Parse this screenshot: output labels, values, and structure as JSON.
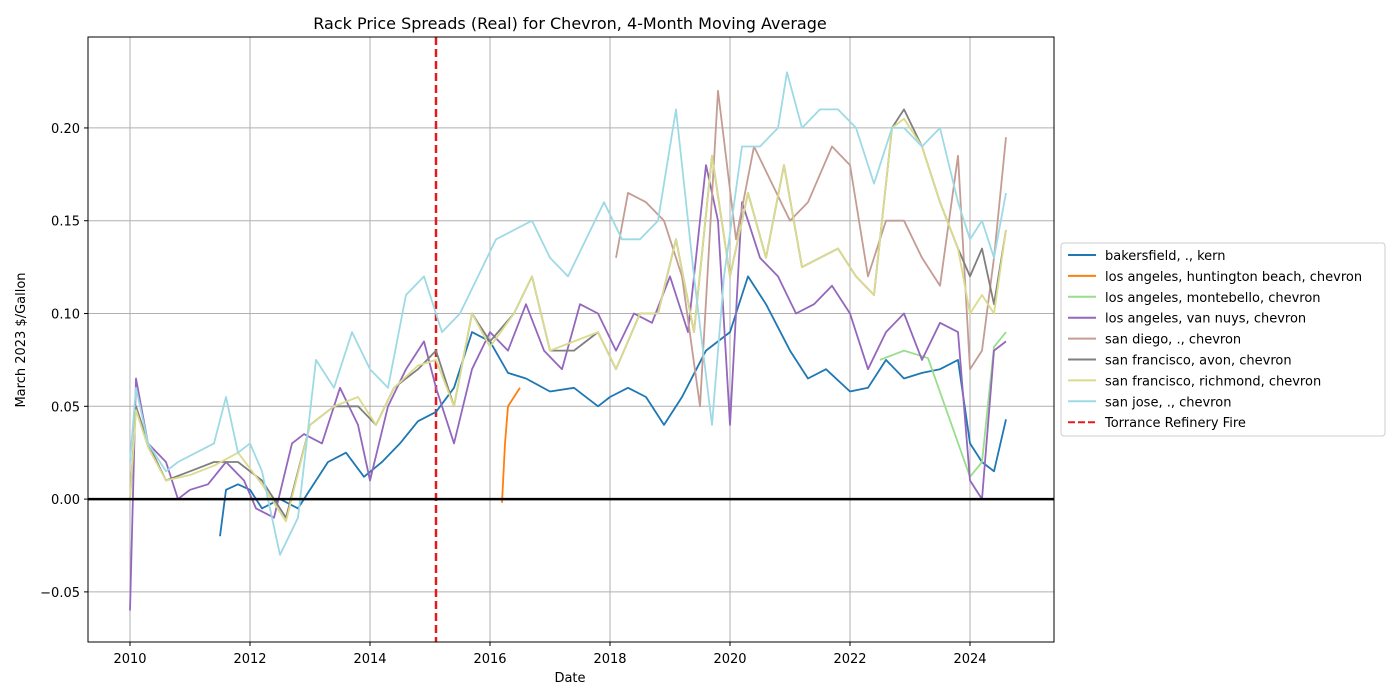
{
  "chart_data": {
    "type": "line",
    "title": "Rack Price Spreads (Real) for Chevron, 4-Month Moving Average",
    "xlabel": "Date",
    "ylabel": "March 2023 $/Gallon",
    "xlim": [
      2009.3,
      2025.4
    ],
    "ylim": [
      -0.077,
      0.249
    ],
    "x_ticks": [
      2010,
      2012,
      2014,
      2016,
      2018,
      2020,
      2022,
      2024
    ],
    "x_tick_labels": [
      "2010",
      "2012",
      "2014",
      "2016",
      "2018",
      "2020",
      "2022",
      "2024"
    ],
    "y_ticks": [
      -0.05,
      0.0,
      0.05,
      0.1,
      0.15,
      0.2
    ],
    "y_tick_labels": [
      "−0.05",
      "0.00",
      "0.05",
      "0.10",
      "0.15",
      "0.20"
    ],
    "grid": true,
    "legend_position": "outside-right",
    "reference_line": {
      "y": 0.0,
      "color": "#000000"
    },
    "event_line": {
      "x": 2015.1,
      "name": "Torrance Refinery Fire",
      "color": "#e41a1c",
      "style": "dashed"
    },
    "series": [
      {
        "name": "bakersfield, ., kern",
        "color": "#1f77b4",
        "x": [
          2011.5,
          2011.6,
          2011.8,
          2012.0,
          2012.2,
          2012.5,
          2012.8,
          2013.0,
          2013.3,
          2013.6,
          2013.9,
          2014.2,
          2014.5,
          2014.8,
          2015.1,
          2015.4,
          2015.7,
          2016.0,
          2016.3,
          2016.6,
          2017.0,
          2017.4,
          2017.8,
          2018.0,
          2018.3,
          2018.6,
          2018.9,
          2019.2,
          2019.6,
          2020.0,
          2020.3,
          2020.6,
          2021.0,
          2021.3,
          2021.6,
          2022.0,
          2022.3,
          2022.6,
          2022.9,
          2023.2,
          2023.5,
          2023.8,
          2024.0,
          2024.2,
          2024.4,
          2024.6
        ],
        "y": [
          -0.02,
          0.005,
          0.008,
          0.005,
          -0.005,
          0.0,
          -0.005,
          0.005,
          0.02,
          0.025,
          0.012,
          0.02,
          0.03,
          0.042,
          0.047,
          0.06,
          0.09,
          0.085,
          0.068,
          0.065,
          0.058,
          0.06,
          0.05,
          0.055,
          0.06,
          0.055,
          0.04,
          0.055,
          0.08,
          0.09,
          0.12,
          0.105,
          0.08,
          0.065,
          0.07,
          0.058,
          0.06,
          0.075,
          0.065,
          0.068,
          0.07,
          0.075,
          0.03,
          0.02,
          0.015,
          0.043
        ]
      },
      {
        "name": "los angeles, huntington beach, chevron",
        "color": "#ff7f0e",
        "x": [
          2016.2,
          2016.25,
          2016.3,
          2016.4,
          2016.5
        ],
        "y": [
          -0.002,
          0.03,
          0.05,
          0.055,
          0.06
        ]
      },
      {
        "name": "los angeles, montebello, chevron",
        "color": "#98df8a",
        "x": [
          2022.5,
          2022.9,
          2023.1,
          2023.3,
          2024.0,
          2024.2,
          2024.4,
          2024.6
        ],
        "y": [
          0.075,
          0.08,
          0.078,
          0.076,
          0.012,
          0.02,
          0.082,
          0.09
        ]
      },
      {
        "name": "los angeles, van nuys, chevron",
        "color": "#9467bd",
        "x": [
          2010.0,
          2010.1,
          2010.3,
          2010.6,
          2010.8,
          2011.0,
          2011.3,
          2011.6,
          2011.9,
          2012.1,
          2012.4,
          2012.7,
          2012.9,
          2013.2,
          2013.5,
          2013.8,
          2014.0,
          2014.3,
          2014.6,
          2014.9,
          2015.1,
          2015.4,
          2015.7,
          2016.0,
          2016.3,
          2016.6,
          2016.9,
          2017.2,
          2017.5,
          2017.8,
          2018.1,
          2018.4,
          2018.7,
          2019.0,
          2019.3,
          2019.6,
          2019.8,
          2020.0,
          2020.2,
          2020.5,
          2020.8,
          2021.1,
          2021.4,
          2021.7,
          2022.0,
          2022.3,
          2022.6,
          2022.9,
          2023.2,
          2023.5,
          2023.8,
          2024.0,
          2024.2,
          2024.4,
          2024.6
        ],
        "y": [
          -0.06,
          0.065,
          0.03,
          0.02,
          0.0,
          0.005,
          0.008,
          0.02,
          0.01,
          -0.005,
          -0.01,
          0.03,
          0.035,
          0.03,
          0.06,
          0.04,
          0.01,
          0.05,
          0.07,
          0.085,
          0.06,
          0.03,
          0.07,
          0.09,
          0.08,
          0.105,
          0.08,
          0.07,
          0.105,
          0.1,
          0.08,
          0.1,
          0.095,
          0.12,
          0.09,
          0.18,
          0.15,
          0.04,
          0.16,
          0.13,
          0.12,
          0.1,
          0.105,
          0.115,
          0.1,
          0.07,
          0.09,
          0.1,
          0.075,
          0.095,
          0.09,
          0.01,
          0.0,
          0.08,
          0.085
        ]
      },
      {
        "name": "san diego, ., chevron",
        "color": "#c49c94",
        "x": [
          2018.1,
          2018.3,
          2018.6,
          2018.9,
          2019.2,
          2019.5,
          2019.8,
          2020.1,
          2020.4,
          2020.7,
          2021.0,
          2021.3,
          2021.7,
          2022.0,
          2022.3,
          2022.6,
          2022.9,
          2023.2,
          2023.5,
          2023.8,
          2024.0,
          2024.2,
          2024.4,
          2024.6
        ],
        "y": [
          0.13,
          0.165,
          0.16,
          0.15,
          0.12,
          0.05,
          0.22,
          0.14,
          0.19,
          0.17,
          0.15,
          0.16,
          0.19,
          0.18,
          0.12,
          0.15,
          0.15,
          0.13,
          0.115,
          0.185,
          0.07,
          0.08,
          0.13,
          0.195
        ]
      },
      {
        "name": "san francisco, avon, chevron",
        "color": "#7f7f7f",
        "x": [
          2010.0,
          2010.1,
          2010.3,
          2010.6,
          2011.0,
          2011.4,
          2011.8,
          2012.2,
          2012.6,
          2013.0,
          2013.4,
          2013.8,
          2014.1,
          2014.4,
          2014.8,
          2015.1,
          2015.4,
          2015.7,
          2016.0,
          2016.4,
          2016.7,
          2017.0,
          2017.4,
          2017.8,
          2018.1,
          2018.5,
          2018.8,
          2019.1,
          2019.4,
          2019.7,
          2020.0,
          2020.3,
          2020.6,
          2020.9,
          2021.2,
          2021.5,
          2021.8,
          2022.1,
          2022.4,
          2022.7,
          2022.9,
          2023.2,
          2023.5,
          2023.8,
          2024.0,
          2024.2,
          2024.4,
          2024.6
        ],
        "y": [
          0.0,
          0.05,
          0.03,
          0.01,
          0.015,
          0.02,
          0.02,
          0.01,
          -0.01,
          0.04,
          0.05,
          0.05,
          0.04,
          0.06,
          0.07,
          0.08,
          0.05,
          0.1,
          0.085,
          0.1,
          0.12,
          0.08,
          0.08,
          0.09,
          0.07,
          0.1,
          0.1,
          0.14,
          0.09,
          0.185,
          0.12,
          0.165,
          0.13,
          0.18,
          0.125,
          0.13,
          0.135,
          0.12,
          0.11,
          0.2,
          0.21,
          0.19,
          0.16,
          0.135,
          0.12,
          0.135,
          0.105,
          0.145
        ]
      },
      {
        "name": "san francisco, richmond, chevron",
        "color": "#dbdb8d",
        "x": [
          2010.0,
          2010.1,
          2010.3,
          2010.6,
          2011.0,
          2011.4,
          2011.8,
          2012.2,
          2012.6,
          2013.0,
          2013.4,
          2013.8,
          2014.1,
          2014.4,
          2014.8,
          2015.1,
          2015.4,
          2015.7,
          2016.0,
          2016.4,
          2016.7,
          2017.0,
          2017.4,
          2017.8,
          2018.1,
          2018.5,
          2018.8,
          2019.1,
          2019.4,
          2019.7,
          2020.0,
          2020.3,
          2020.6,
          2020.9,
          2021.2,
          2021.5,
          2021.8,
          2022.1,
          2022.4,
          2022.7,
          2022.9,
          2023.2,
          2023.5,
          2023.8,
          2024.0,
          2024.2,
          2024.4,
          2024.6
        ],
        "y": [
          0.0,
          0.048,
          0.028,
          0.01,
          0.013,
          0.018,
          0.025,
          0.008,
          -0.012,
          0.04,
          0.05,
          0.055,
          0.04,
          0.06,
          0.072,
          0.075,
          0.05,
          0.1,
          0.082,
          0.1,
          0.12,
          0.08,
          0.085,
          0.09,
          0.07,
          0.1,
          0.1,
          0.14,
          0.09,
          0.185,
          0.12,
          0.165,
          0.13,
          0.18,
          0.125,
          0.13,
          0.135,
          0.12,
          0.11,
          0.2,
          0.205,
          0.19,
          0.16,
          0.135,
          0.1,
          0.11,
          0.1,
          0.145
        ]
      },
      {
        "name": "san jose, ., chevron",
        "color": "#9edae5",
        "x": [
          2010.0,
          2010.1,
          2010.3,
          2010.6,
          2010.8,
          2011.1,
          2011.4,
          2011.6,
          2011.8,
          2012.0,
          2012.2,
          2012.5,
          2012.8,
          2013.1,
          2013.4,
          2013.7,
          2014.0,
          2014.3,
          2014.6,
          2014.9,
          2015.2,
          2015.5,
          2015.8,
          2016.1,
          2016.4,
          2016.7,
          2017.0,
          2017.3,
          2017.6,
          2017.9,
          2018.2,
          2018.5,
          2018.8,
          2019.1,
          2019.4,
          2019.7,
          2019.9,
          2020.2,
          2020.5,
          2020.8,
          2020.95,
          2021.2,
          2021.5,
          2021.8,
          2022.1,
          2022.4,
          2022.7,
          2022.9,
          2023.2,
          2023.5,
          2023.8,
          2024.0,
          2024.2,
          2024.4,
          2024.6
        ],
        "y": [
          0.02,
          0.06,
          0.03,
          0.015,
          0.02,
          0.025,
          0.03,
          0.055,
          0.025,
          0.03,
          0.015,
          -0.03,
          -0.01,
          0.075,
          0.06,
          0.09,
          0.07,
          0.06,
          0.11,
          0.12,
          0.09,
          0.1,
          0.12,
          0.14,
          0.145,
          0.15,
          0.13,
          0.12,
          0.14,
          0.16,
          0.14,
          0.14,
          0.15,
          0.21,
          0.12,
          0.04,
          0.12,
          0.19,
          0.19,
          0.2,
          0.23,
          0.2,
          0.21,
          0.21,
          0.2,
          0.17,
          0.2,
          0.2,
          0.19,
          0.2,
          0.16,
          0.14,
          0.15,
          0.13,
          0.165
        ]
      }
    ]
  }
}
